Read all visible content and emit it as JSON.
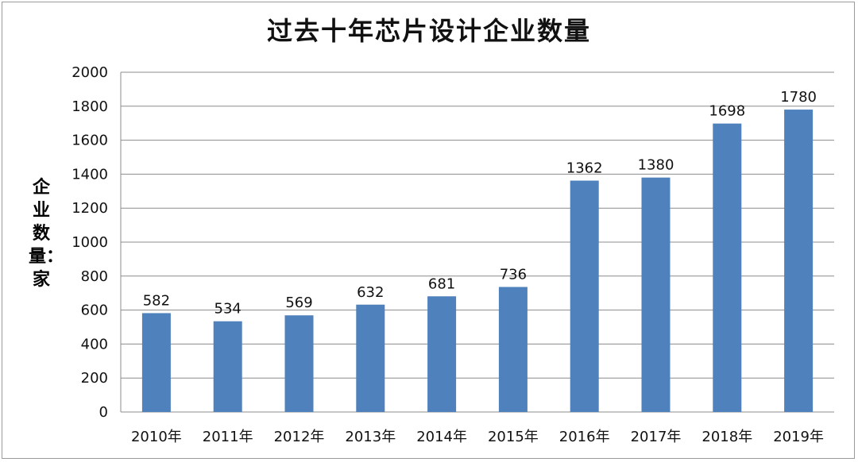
{
  "chart_data": {
    "type": "bar",
    "title": "过去十年芯片设计企业数量",
    "ylabel": "企业数量：家",
    "xlabel": "",
    "categories": [
      "2010年",
      "2011年",
      "2012年",
      "2013年",
      "2014年",
      "2015年",
      "2016年",
      "2017年",
      "2018年",
      "2019年"
    ],
    "values": [
      582,
      534,
      569,
      632,
      681,
      736,
      1362,
      1380,
      1698,
      1780
    ],
    "ylim": [
      0,
      2000
    ],
    "yticks": [
      0,
      200,
      400,
      600,
      800,
      1000,
      1200,
      1400,
      1600,
      1800,
      2000
    ],
    "grid": true,
    "bar_color": "#4f81bd",
    "grid_color": "#8c8c8c",
    "legend": "none"
  }
}
